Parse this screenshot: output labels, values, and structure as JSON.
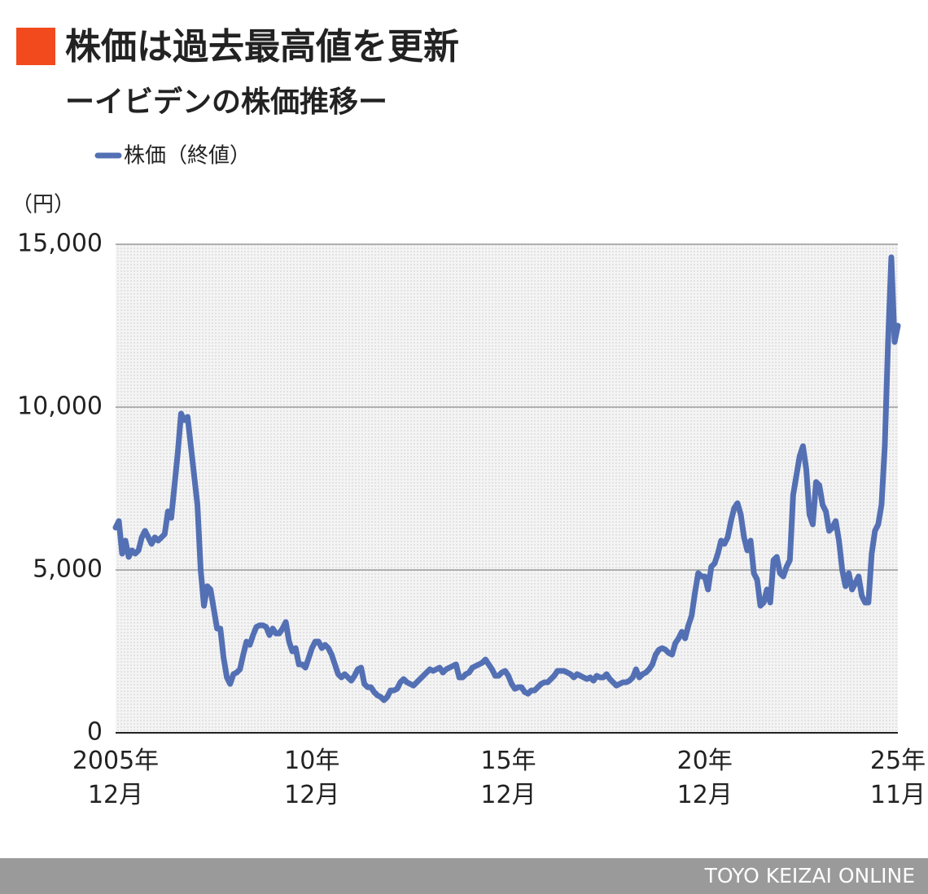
{
  "chart_data": {
    "type": "line",
    "title": "株価は過去最高値を更新",
    "subtitle": "ーイビデンの株価推移ー",
    "ylabel": "（円）",
    "source": "TOYO KEIZAI ONLINE",
    "legend": "top-left",
    "grid": true,
    "ylim": [
      0,
      15000
    ],
    "yticks": [
      0,
      {
        "value": 5000,
        "label": "5,000"
      },
      {
        "value": 10000,
        "label": "10,000"
      },
      {
        "value": 15000,
        "label": "15,000"
      }
    ],
    "categories": [
      "2005年\n12月",
      null,
      null,
      null,
      null,
      null,
      null,
      null,
      null,
      null,
      null,
      null,
      null,
      null,
      null,
      null,
      null,
      null,
      null,
      null,
      null,
      null,
      null,
      null,
      null,
      null,
      null,
      null,
      null,
      null,
      null,
      null,
      null,
      null,
      null,
      null,
      null,
      null,
      null,
      null,
      null,
      null,
      null,
      null,
      null,
      null,
      null,
      null,
      null,
      null,
      null,
      null,
      null,
      null,
      null,
      null,
      null,
      null,
      null,
      null,
      "10年\n12月",
      null,
      null,
      null,
      null,
      null,
      null,
      null,
      null,
      null,
      null,
      null,
      null,
      null,
      null,
      null,
      null,
      null,
      null,
      null,
      null,
      null,
      null,
      null,
      null,
      null,
      null,
      null,
      null,
      null,
      null,
      null,
      null,
      null,
      null,
      null,
      null,
      null,
      null,
      null,
      null,
      null,
      null,
      null,
      null,
      null,
      null,
      null,
      null,
      null,
      null,
      null,
      null,
      null,
      null,
      null,
      null,
      null,
      null,
      null,
      "15年\n12月",
      null,
      null,
      null,
      null,
      null,
      null,
      null,
      null,
      null,
      null,
      null,
      null,
      null,
      null,
      null,
      null,
      null,
      null,
      null,
      null,
      null,
      null,
      null,
      null,
      null,
      null,
      null,
      null,
      null,
      null,
      null,
      null,
      null,
      null,
      null,
      null,
      null,
      null,
      null,
      null,
      null,
      null,
      null,
      null,
      null,
      null,
      null,
      null,
      null,
      null,
      null,
      null,
      null,
      null,
      null,
      null,
      null,
      null,
      null,
      "20年\n12月",
      null,
      null,
      null,
      null,
      null,
      null,
      null,
      null,
      null,
      null,
      null,
      null,
      null,
      null,
      null,
      null,
      null,
      null,
      null,
      null,
      null,
      null,
      null,
      null,
      null,
      null,
      null,
      null,
      null,
      null,
      null,
      null,
      null,
      null,
      null,
      null,
      null,
      null,
      null,
      null,
      null,
      null,
      null,
      null,
      null,
      null,
      null,
      null,
      null,
      null,
      null,
      null,
      null,
      null,
      null,
      null,
      null,
      null,
      "25年\n11月"
    ],
    "series": [
      {
        "name": "株価（終値）",
        "color": "#5470b4",
        "values": [
          6300,
          6500,
          5500,
          5900,
          5400,
          5600,
          5500,
          5600,
          6000,
          6200,
          6000,
          5800,
          6000,
          5900,
          6000,
          6100,
          6800,
          6600,
          7600,
          8600,
          9800,
          9600,
          9700,
          8800,
          7900,
          7000,
          5000,
          3900,
          4500,
          4400,
          3800,
          3200,
          3200,
          2300,
          1700,
          1500,
          1800,
          1850,
          1950,
          2400,
          2800,
          2700,
          3000,
          3250,
          3300,
          3300,
          3250,
          3000,
          3200,
          3050,
          3050,
          3200,
          3400,
          2800,
          2500,
          2600,
          2100,
          2100,
          2000,
          2300,
          2600,
          2800,
          2800,
          2600,
          2700,
          2600,
          2400,
          2100,
          1800,
          1700,
          1800,
          1700,
          1600,
          1750,
          1950,
          2000,
          1500,
          1400,
          1400,
          1250,
          1150,
          1100,
          1000,
          1100,
          1300,
          1300,
          1350,
          1550,
          1650,
          1550,
          1500,
          1450,
          1550,
          1650,
          1750,
          1850,
          1950,
          1900,
          1950,
          2000,
          1850,
          1950,
          2000,
          2050,
          2100,
          1700,
          1700,
          1800,
          1850,
          2000,
          2050,
          2100,
          2150,
          2250,
          2100,
          1950,
          1750,
          1750,
          1850,
          1900,
          1750,
          1500,
          1350,
          1400,
          1400,
          1250,
          1200,
          1300,
          1300,
          1400,
          1500,
          1550,
          1550,
          1650,
          1750,
          1900,
          1900,
          1900,
          1850,
          1800,
          1700,
          1800,
          1750,
          1700,
          1650,
          1700,
          1600,
          1750,
          1700,
          1700,
          1800,
          1650,
          1550,
          1450,
          1500,
          1550,
          1550,
          1600,
          1700,
          1950,
          1700,
          1800,
          1850,
          1950,
          2100,
          2400,
          2550,
          2600,
          2550,
          2450,
          2400,
          2750,
          2900,
          3100,
          2900,
          3300,
          3600,
          4300,
          4900,
          4800,
          4800,
          4400,
          5100,
          5200,
          5500,
          5900,
          5800,
          6000,
          6500,
          6900,
          7050,
          6700,
          6000,
          5600,
          5900,
          4900,
          4700,
          3900,
          4000,
          4400,
          4000,
          5300,
          5400,
          4900,
          4800,
          5100,
          5300,
          7300,
          7900,
          8500,
          8800,
          8100,
          6700,
          6400,
          7700,
          7600,
          7000,
          6800,
          6200,
          6300,
          6500,
          5900,
          5000,
          4500,
          4900,
          4400,
          4600,
          4800,
          4200,
          4000,
          4000,
          5500,
          6200,
          6400,
          7000,
          8800,
          12000,
          14600,
          12000,
          12500
        ]
      }
    ]
  }
}
